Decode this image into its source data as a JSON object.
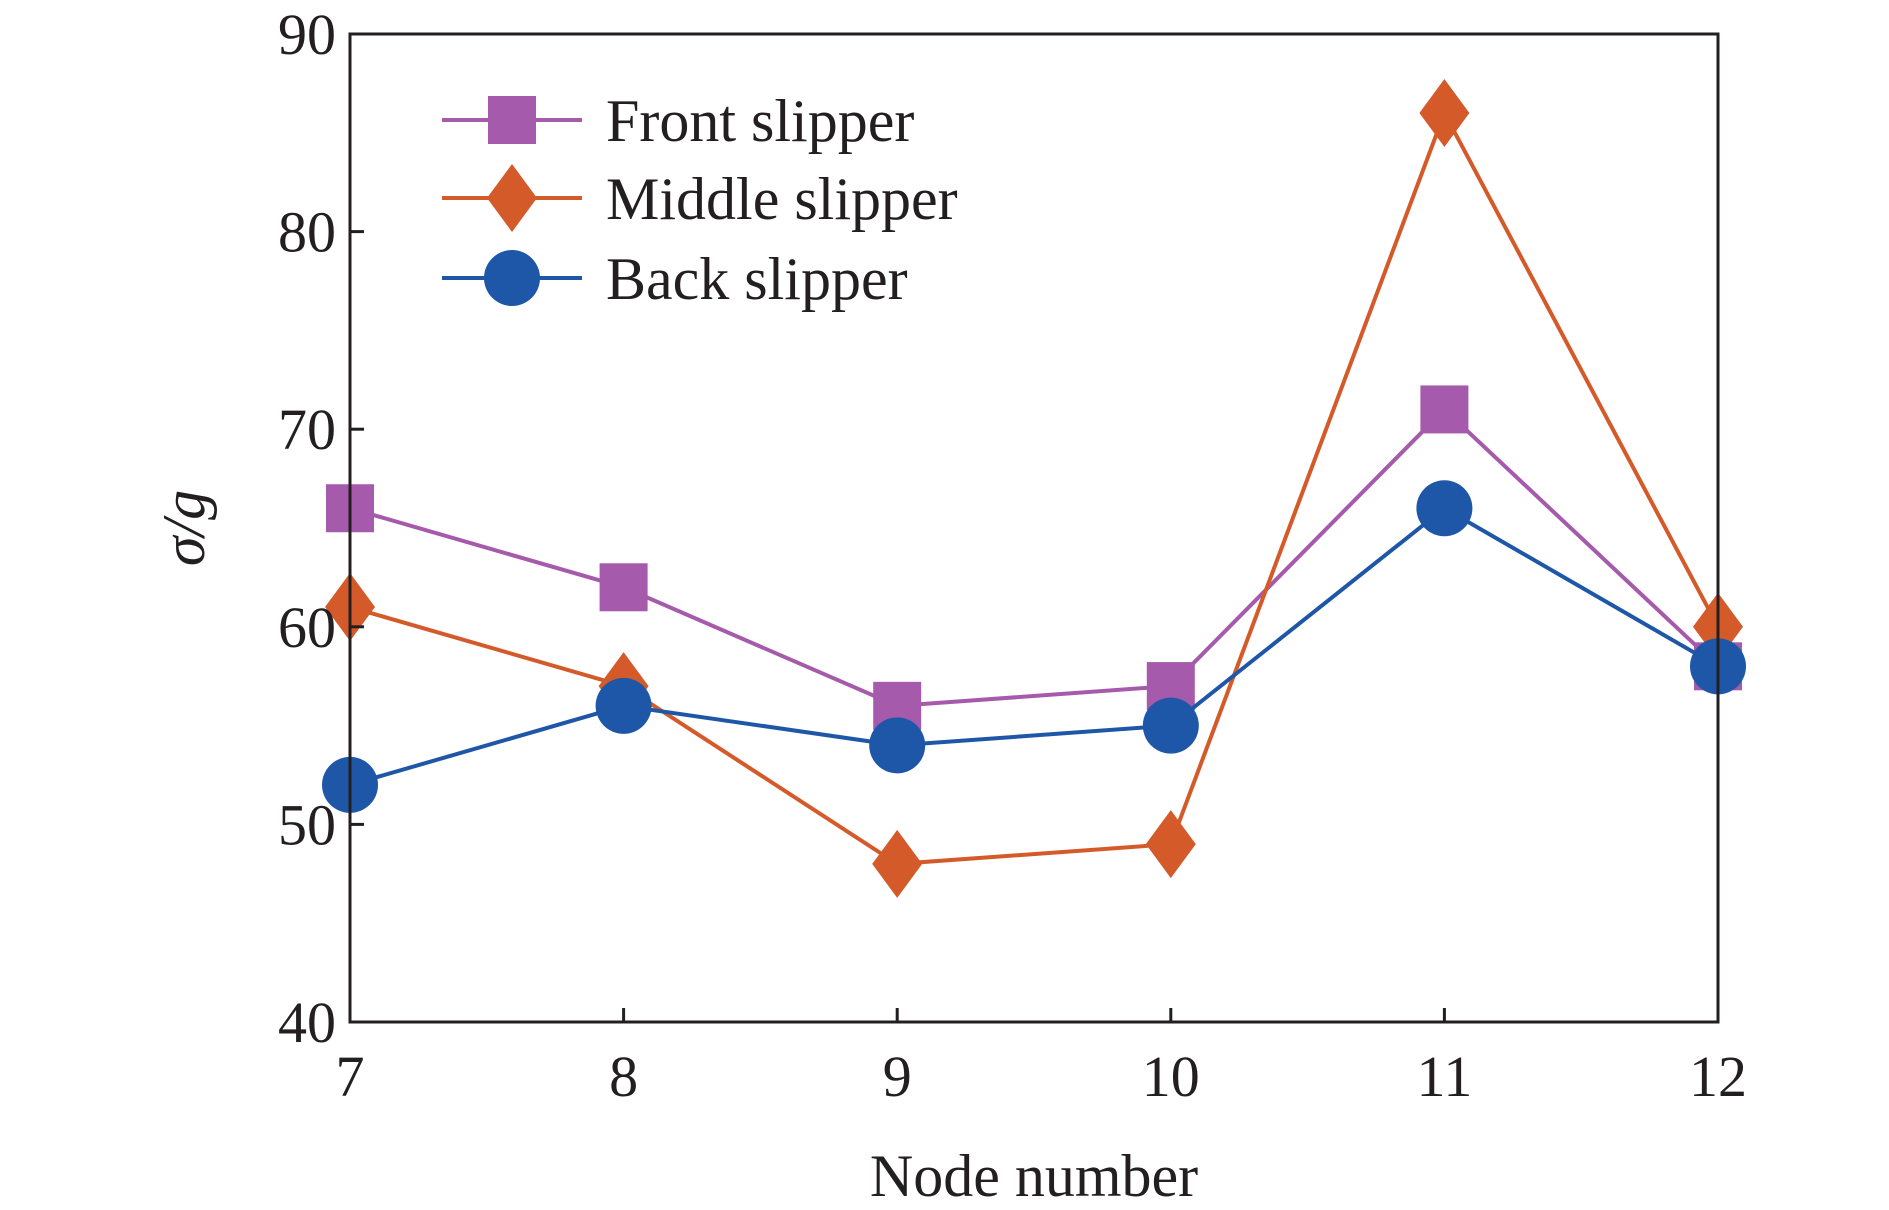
{
  "chart_data": {
    "type": "line",
    "title": "",
    "xlabel": "Node number",
    "ylabel": "σ/g",
    "x": [
      7,
      8,
      9,
      10,
      11,
      12
    ],
    "xlim": [
      7,
      12
    ],
    "ylim": [
      40,
      90
    ],
    "xticks": [
      "7",
      "8",
      "9",
      "10",
      "11",
      "12"
    ],
    "yticks": [
      "40",
      "50",
      "60",
      "70",
      "80",
      "90"
    ],
    "grid": false,
    "legend_position": "top-left",
    "series": [
      {
        "name": "Front slipper",
        "marker": "square",
        "color": "#a65aab",
        "values": [
          66,
          62,
          56,
          57,
          71,
          58
        ]
      },
      {
        "name": "Middle slipper",
        "marker": "diamond",
        "color": "#d45a2a",
        "values": [
          61,
          57,
          48,
          49,
          86,
          60
        ]
      },
      {
        "name": "Back slipper",
        "marker": "circle",
        "color": "#1f57a8",
        "values": [
          52,
          56,
          54,
          55,
          66,
          58
        ]
      }
    ]
  }
}
